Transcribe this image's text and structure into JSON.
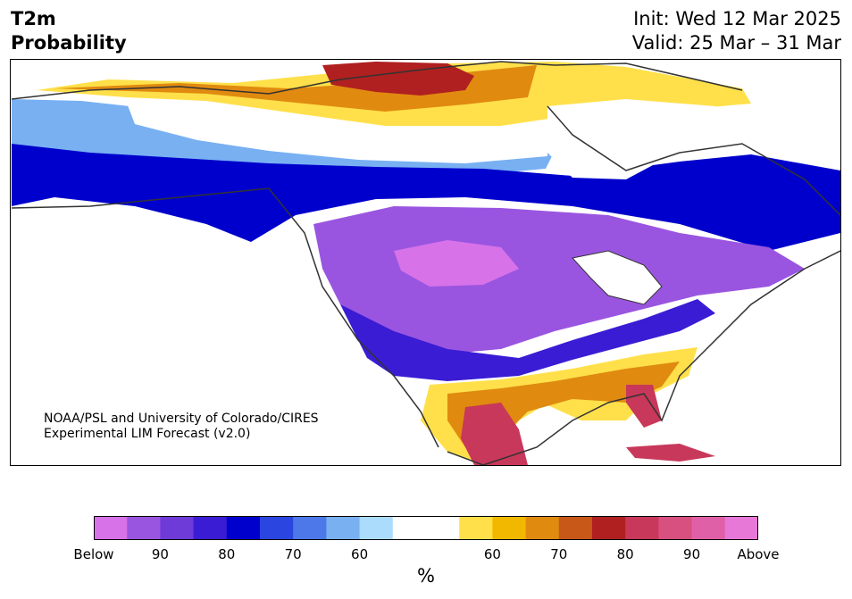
{
  "header": {
    "title_line1": "T2m",
    "title_line2": "Probability",
    "init": "Init: Wed 12 Mar 2025",
    "valid": "Valid: 25 Mar – 31 Mar"
  },
  "credit": {
    "line1": "NOAA/PSL and University of Colorado/CIRES",
    "line2": "Experimental LIM Forecast (v2.0)"
  },
  "colorbar": {
    "colors": [
      "#d772e8",
      "#9a55e0",
      "#6e3ad8",
      "#3a1cd4",
      "#0000cc",
      "#2a45e0",
      "#4d78ea",
      "#78b0f2",
      "#acdcfc",
      "#ffffff",
      "#ffffff",
      "#ffe04a",
      "#f2b800",
      "#e08a10",
      "#c85818",
      "#b02020",
      "#c8385a",
      "#d85080",
      "#e060a8",
      "#e878d8"
    ],
    "tick_labels": [
      "Below",
      "90",
      "80",
      "70",
      "60",
      "60",
      "70",
      "80",
      "90",
      "Above"
    ],
    "unit": "%"
  },
  "map_colors": {
    "below_strong": "#d772e8",
    "below_mid": "#9a55e0",
    "below_weak": "#3a1cd4",
    "above_weak": "#ffe04a",
    "above_mid": "#e08a10",
    "above_strong": "#b02020",
    "coast": "#333333"
  }
}
